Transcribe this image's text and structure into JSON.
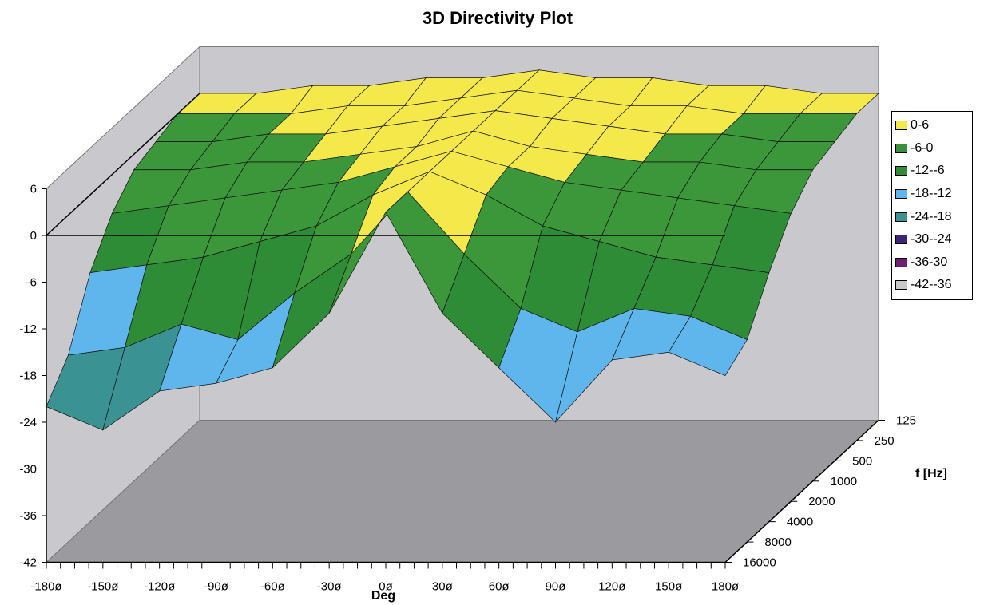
{
  "chart_data": {
    "type": "surface-3d",
    "title": "3D Directivity Plot",
    "xlabel": "Deg",
    "ylabel": "",
    "zlabel": "f [Hz]",
    "x_ticks": [
      "-180ø",
      "-150ø",
      "-120ø",
      "-90ø",
      "-60ø",
      "-30ø",
      "0ø",
      "30ø",
      "60ø",
      "90ø",
      "120ø",
      "150ø",
      "180ø"
    ],
    "y_ticks": [
      "6",
      "0",
      "-6",
      "-12",
      "-18",
      "-24",
      "-30",
      "-36",
      "-42"
    ],
    "z_ticks": [
      "125",
      "250",
      "500",
      "1000",
      "2000",
      "4000",
      "8000",
      "16000"
    ],
    "ylim": [
      -42,
      6
    ],
    "grid": false,
    "legend_position": "right",
    "legend": [
      {
        "label": "0-6",
        "color": "#f4e84a"
      },
      {
        "label": "-6-0",
        "color": "#3a8f3a"
      },
      {
        "label": "-12--6",
        "color": "#2e8b36"
      },
      {
        "label": "-18--12",
        "color": "#5eb6ec"
      },
      {
        "label": "-24--18",
        "color": "#3a9293"
      },
      {
        "label": "-30--24",
        "color": "#3b237a"
      },
      {
        "label": "-36-30",
        "color": "#6c1f6e"
      },
      {
        "label": "-42--36",
        "color": "#c8c8c8"
      }
    ],
    "frequencies": [
      125,
      250,
      500,
      1000,
      2000,
      4000,
      8000,
      16000
    ],
    "angles": [
      -180,
      -150,
      -120,
      -90,
      -60,
      -30,
      0,
      30,
      60,
      90,
      120,
      150,
      180
    ],
    "series": [
      {
        "name": "125",
        "values": [
          0,
          0,
          1,
          1,
          2,
          2,
          3,
          2,
          2,
          1,
          1,
          0,
          0
        ]
      },
      {
        "name": "250",
        "values": [
          0,
          0,
          0,
          1,
          1,
          2,
          3,
          2,
          1,
          1,
          0,
          0,
          0
        ]
      },
      {
        "name": "500",
        "values": [
          -1,
          -1,
          0,
          0,
          1,
          2,
          3,
          2,
          1,
          0,
          0,
          -1,
          -1
        ]
      },
      {
        "name": "1000",
        "values": [
          -2,
          -2,
          -1,
          -1,
          0,
          1,
          3,
          1,
          0,
          -1,
          -1,
          -2,
          -2
        ]
      },
      {
        "name": "2000",
        "values": [
          -5,
          -4,
          -3,
          -2,
          -1,
          1,
          3,
          1,
          -1,
          -2,
          -3,
          -4,
          -5
        ]
      },
      {
        "name": "4000",
        "values": [
          -10,
          -9,
          -8,
          -6,
          -4,
          0,
          3,
          0,
          -4,
          -6,
          -8,
          -9,
          -10
        ]
      },
      {
        "name": "8000",
        "values": [
          -18,
          -17,
          -14,
          -16,
          -10,
          -5,
          3,
          -5,
          -12,
          -15,
          -12,
          -13,
          -16
        ]
      },
      {
        "name": "16000",
        "values": [
          -22,
          -25,
          -20,
          -19,
          -17,
          -10,
          3,
          -10,
          -17,
          -24,
          -16,
          -15,
          -18
        ]
      }
    ]
  }
}
